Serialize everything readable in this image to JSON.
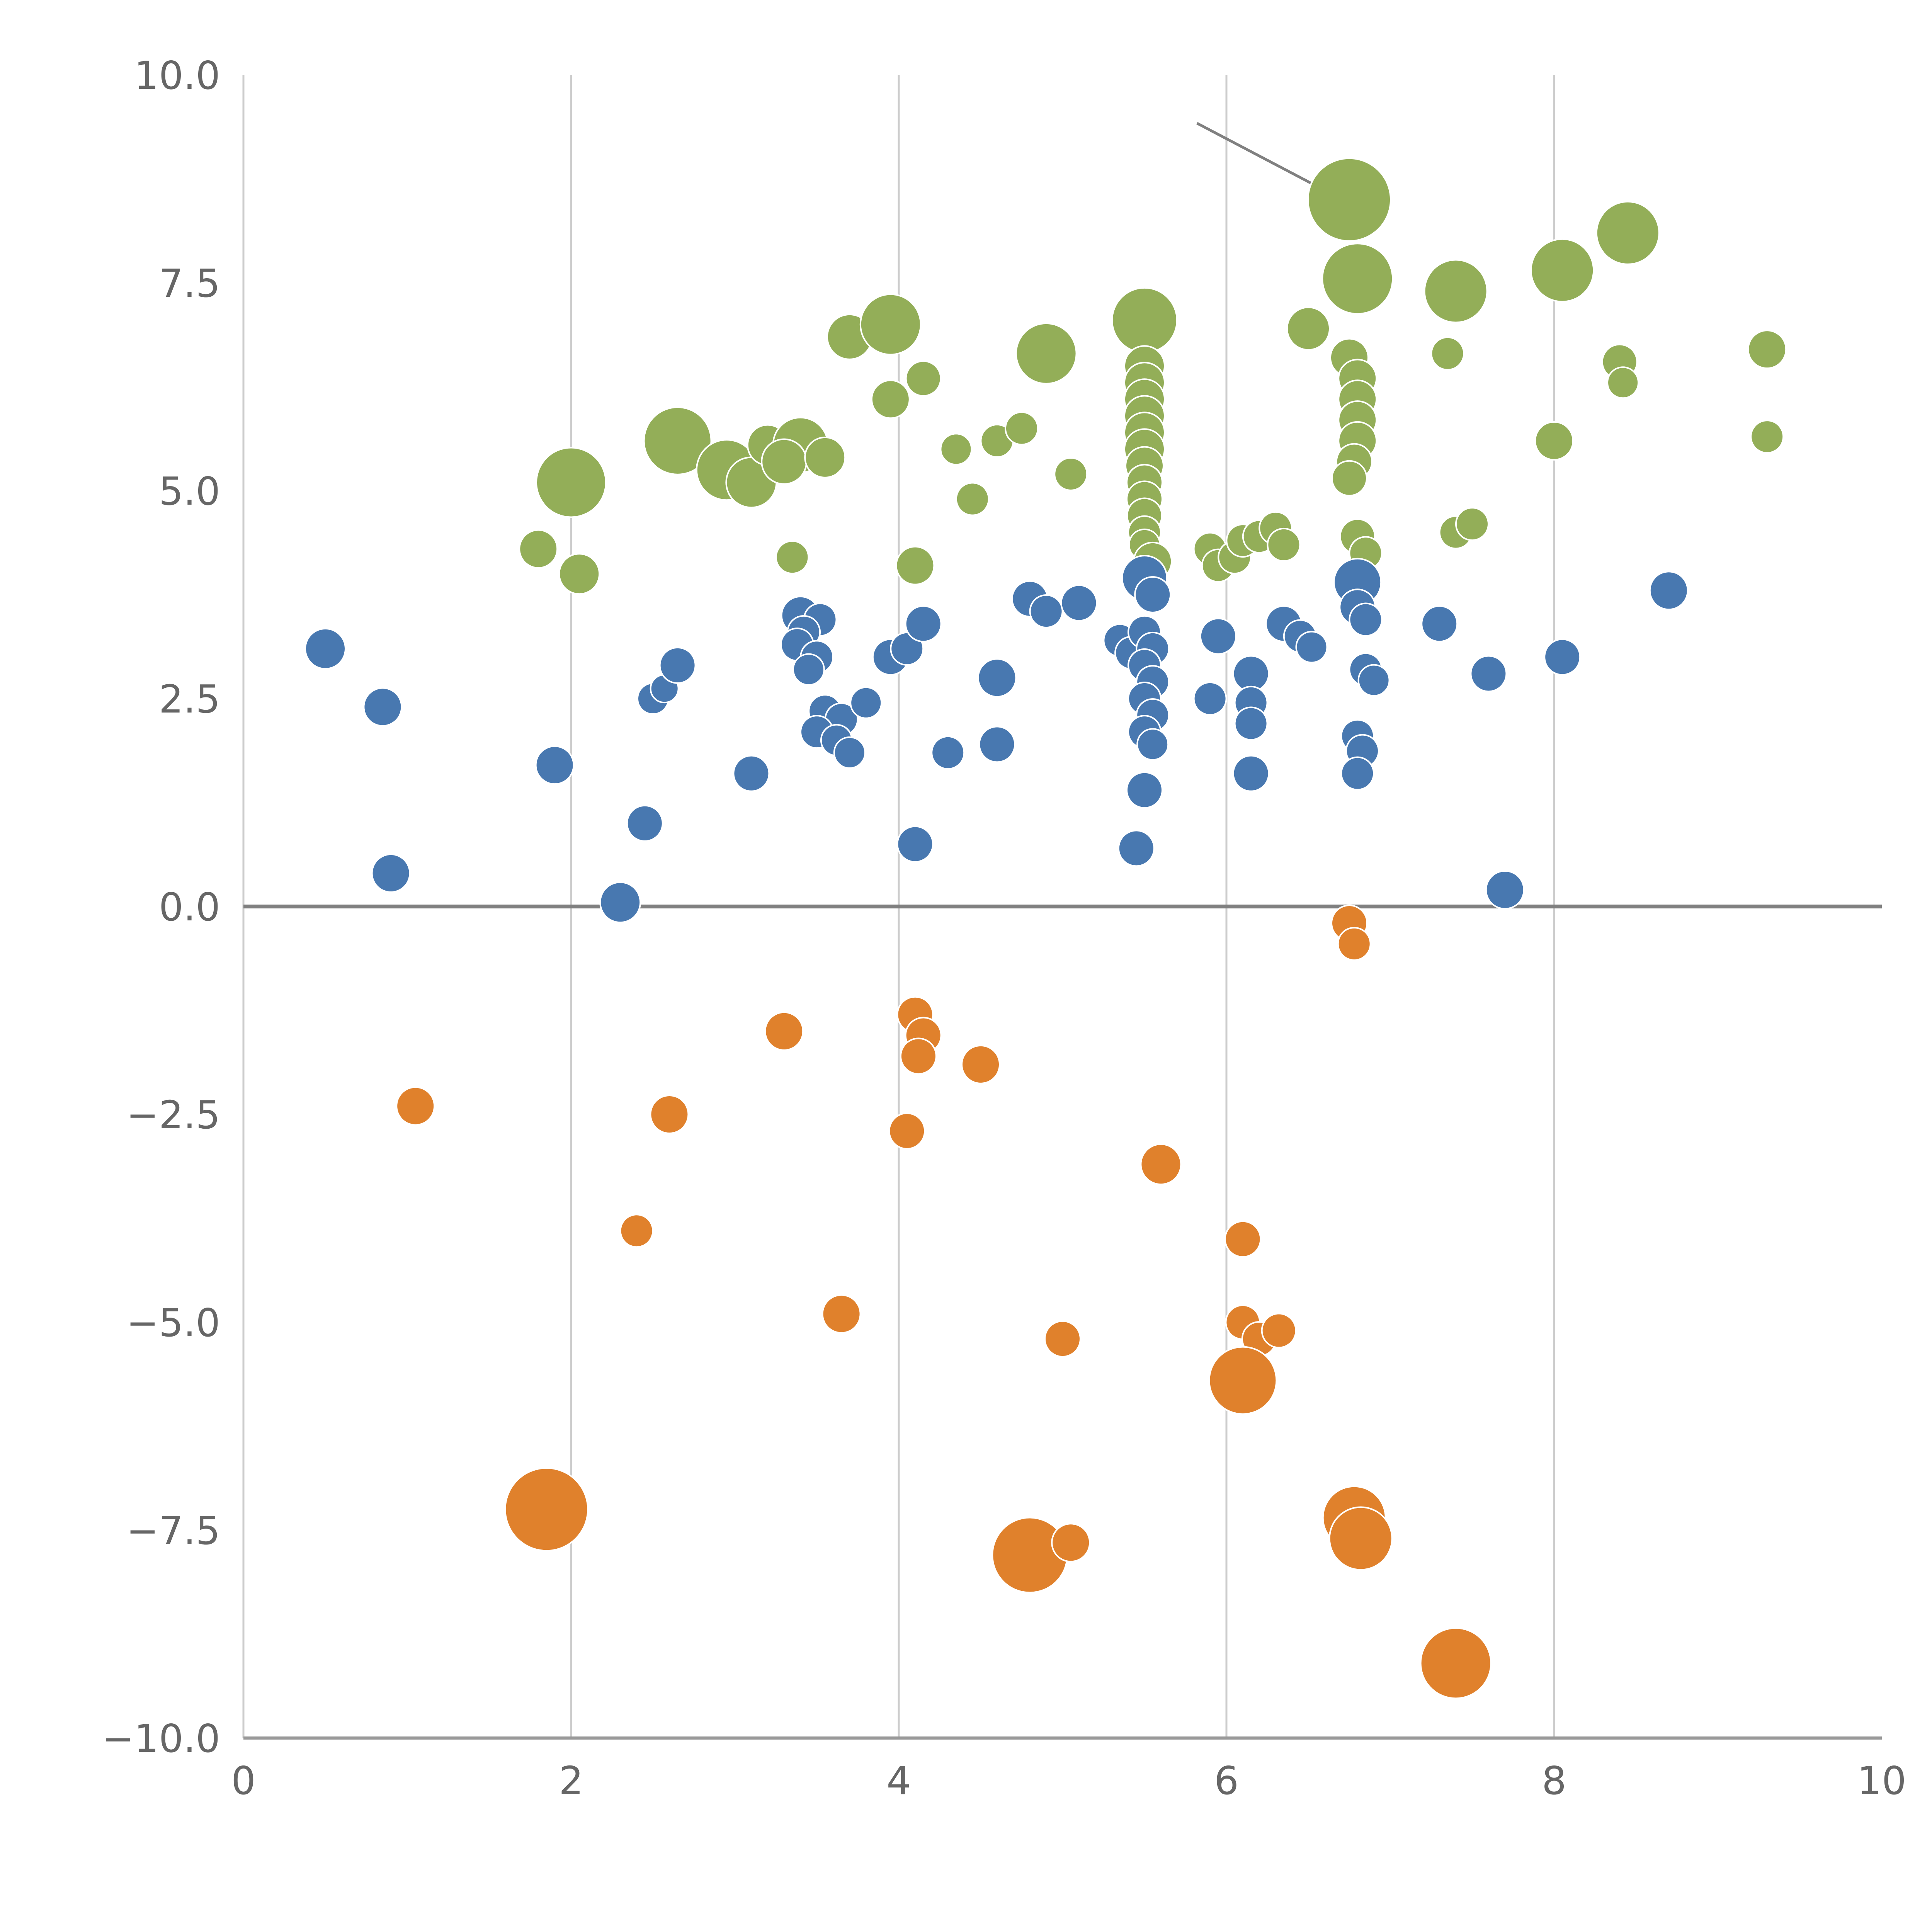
{
  "chart_data": {
    "type": "scatter",
    "title": "",
    "xlabel": "",
    "ylabel": "",
    "xlim": [
      0,
      10
    ],
    "ylim": [
      -10,
      10
    ],
    "x_tick_values": [
      0,
      2,
      4,
      6,
      8,
      10
    ],
    "x_tick_labels": [
      "0",
      "2",
      "4",
      "6",
      "8",
      "10"
    ],
    "y_tick_values": [
      10,
      7.5,
      5,
      2.5,
      0,
      -2.5,
      -5,
      -7.5,
      -10
    ],
    "y_tick_labels": [
      "10.0",
      "7.5",
      "5.0",
      "2.5",
      "0.0",
      "−2.5",
      "−5.0",
      "−7.5",
      "−10.0"
    ],
    "gridline_x_values": [
      2,
      4,
      6,
      8
    ],
    "grid_on": true,
    "legend": "none",
    "zero_line_y": 0,
    "annotation_line": {
      "x1": 5.82,
      "y1": 9.42,
      "x2": 6.66,
      "y2": 8.55
    },
    "colors": {
      "green": "#93ae58",
      "blue": "#4878b0",
      "orange": "#e0812c",
      "grid": "#cccccc",
      "zero_line": "#808080",
      "axis": "#999999",
      "tick_label": "#666666",
      "point_edge": "#ffffff",
      "background": "#ffffff"
    },
    "series": [
      {
        "name": "green",
        "color": "#93ae58",
        "points": [
          [
            2.0,
            5.1,
            90
          ],
          [
            1.8,
            4.3,
            49
          ],
          [
            2.05,
            4.0,
            52
          ],
          [
            2.65,
            5.6,
            87
          ],
          [
            2.95,
            5.25,
            78
          ],
          [
            3.1,
            5.1,
            65
          ],
          [
            3.2,
            5.55,
            52
          ],
          [
            3.4,
            5.55,
            71
          ],
          [
            3.3,
            5.35,
            58
          ],
          [
            3.55,
            5.4,
            52
          ],
          [
            3.35,
            4.2,
            42
          ],
          [
            3.7,
            6.85,
            58
          ],
          [
            3.95,
            7.0,
            78
          ],
          [
            3.95,
            6.1,
            49
          ],
          [
            4.15,
            6.35,
            45
          ],
          [
            4.1,
            4.1,
            49
          ],
          [
            4.35,
            5.5,
            40
          ],
          [
            4.45,
            4.9,
            42
          ],
          [
            4.6,
            5.6,
            42
          ],
          [
            4.75,
            5.75,
            42
          ],
          [
            4.9,
            6.65,
            78
          ],
          [
            5.05,
            5.2,
            42
          ],
          [
            5.5,
            7.05,
            84
          ],
          [
            5.5,
            6.5,
            52
          ],
          [
            5.5,
            6.3,
            52
          ],
          [
            5.5,
            6.1,
            52
          ],
          [
            5.5,
            5.9,
            52
          ],
          [
            5.5,
            5.7,
            52
          ],
          [
            5.5,
            5.5,
            52
          ],
          [
            5.5,
            5.3,
            49
          ],
          [
            5.5,
            5.1,
            46
          ],
          [
            5.5,
            4.9,
            46
          ],
          [
            5.5,
            4.7,
            45
          ],
          [
            5.5,
            4.5,
            42
          ],
          [
            5.5,
            4.35,
            40
          ],
          [
            5.55,
            4.15,
            49
          ],
          [
            5.9,
            4.3,
            42
          ],
          [
            5.95,
            4.1,
            42
          ],
          [
            6.05,
            4.2,
            42
          ],
          [
            6.1,
            4.4,
            42
          ],
          [
            6.2,
            4.45,
            42
          ],
          [
            6.3,
            4.55,
            42
          ],
          [
            6.35,
            4.35,
            42
          ],
          [
            6.5,
            6.95,
            55
          ],
          [
            6.75,
            8.5,
            107
          ],
          [
            6.8,
            7.55,
            91
          ],
          [
            6.75,
            6.6,
            49
          ],
          [
            6.8,
            6.35,
            49
          ],
          [
            6.8,
            6.1,
            49
          ],
          [
            6.8,
            5.85,
            49
          ],
          [
            6.8,
            5.6,
            49
          ],
          [
            6.78,
            5.35,
            46
          ],
          [
            6.75,
            5.15,
            45
          ],
          [
            6.8,
            4.45,
            45
          ],
          [
            6.85,
            4.25,
            42
          ],
          [
            7.4,
            7.4,
            81
          ],
          [
            7.35,
            6.65,
            42
          ],
          [
            7.4,
            4.5,
            42
          ],
          [
            7.5,
            4.6,
            42
          ],
          [
            8.05,
            7.65,
            81
          ],
          [
            8.0,
            5.6,
            49
          ],
          [
            8.45,
            8.1,
            81
          ],
          [
            8.4,
            6.55,
            45
          ],
          [
            8.42,
            6.3,
            40
          ],
          [
            9.3,
            6.7,
            49
          ],
          [
            9.3,
            5.65,
            42
          ]
        ]
      },
      {
        "name": "blue",
        "color": "#4878b0",
        "points": [
          [
            0.5,
            3.1,
            52
          ],
          [
            0.85,
            2.4,
            49
          ],
          [
            0.9,
            0.4,
            49
          ],
          [
            1.9,
            1.7,
            49
          ],
          [
            2.3,
            0.05,
            52
          ],
          [
            2.5,
            2.5,
            40
          ],
          [
            2.57,
            2.62,
            36
          ],
          [
            2.65,
            2.9,
            46
          ],
          [
            2.45,
            1.0,
            46
          ],
          [
            3.1,
            1.6,
            46
          ],
          [
            3.4,
            3.5,
            49
          ],
          [
            3.52,
            3.45,
            42
          ],
          [
            3.42,
            3.3,
            42
          ],
          [
            3.38,
            3.15,
            42
          ],
          [
            3.5,
            3.0,
            42
          ],
          [
            3.45,
            2.85,
            40
          ],
          [
            3.55,
            2.35,
            42
          ],
          [
            3.65,
            2.25,
            42
          ],
          [
            3.5,
            2.1,
            42
          ],
          [
            3.62,
            2.0,
            40
          ],
          [
            3.7,
            1.85,
            40
          ],
          [
            3.8,
            2.45,
            40
          ],
          [
            3.95,
            3.0,
            46
          ],
          [
            4.05,
            3.1,
            42
          ],
          [
            4.15,
            3.4,
            46
          ],
          [
            4.1,
            0.75,
            46
          ],
          [
            4.3,
            1.85,
            42
          ],
          [
            4.6,
            2.75,
            49
          ],
          [
            4.6,
            1.95,
            46
          ],
          [
            4.8,
            3.7,
            46
          ],
          [
            4.9,
            3.55,
            42
          ],
          [
            5.1,
            3.65,
            46
          ],
          [
            5.35,
            3.2,
            42
          ],
          [
            5.42,
            3.05,
            42
          ],
          [
            5.5,
            3.95,
            58
          ],
          [
            5.55,
            3.75,
            46
          ],
          [
            5.5,
            3.3,
            42
          ],
          [
            5.55,
            3.1,
            42
          ],
          [
            5.5,
            2.9,
            42
          ],
          [
            5.55,
            2.7,
            42
          ],
          [
            5.5,
            2.5,
            42
          ],
          [
            5.55,
            2.3,
            42
          ],
          [
            5.5,
            2.1,
            42
          ],
          [
            5.55,
            1.95,
            40
          ],
          [
            5.5,
            1.4,
            46
          ],
          [
            5.45,
            0.7,
            46
          ],
          [
            5.9,
            2.5,
            42
          ],
          [
            5.95,
            3.25,
            46
          ],
          [
            6.15,
            2.8,
            46
          ],
          [
            6.15,
            2.45,
            42
          ],
          [
            6.15,
            2.2,
            42
          ],
          [
            6.35,
            3.4,
            46
          ],
          [
            6.45,
            3.25,
            42
          ],
          [
            6.52,
            3.12,
            40
          ],
          [
            6.15,
            1.6,
            46
          ],
          [
            6.8,
            3.9,
            61
          ],
          [
            6.8,
            3.6,
            46
          ],
          [
            6.85,
            3.45,
            42
          ],
          [
            6.85,
            2.85,
            42
          ],
          [
            6.9,
            2.72,
            40
          ],
          [
            6.8,
            2.05,
            42
          ],
          [
            6.83,
            1.87,
            42
          ],
          [
            6.8,
            1.6,
            42
          ],
          [
            7.3,
            3.4,
            46
          ],
          [
            7.6,
            2.8,
            46
          ],
          [
            7.7,
            0.2,
            49
          ],
          [
            8.05,
            3.0,
            46
          ],
          [
            8.7,
            3.8,
            49
          ]
        ]
      },
      {
        "name": "orange",
        "color": "#e0812c",
        "points": [
          [
            1.05,
            -2.4,
            49
          ],
          [
            1.85,
            -7.25,
            107
          ],
          [
            2.4,
            -3.9,
            42
          ],
          [
            2.6,
            -2.5,
            49
          ],
          [
            3.3,
            -1.5,
            49
          ],
          [
            3.65,
            -4.9,
            49
          ],
          [
            4.1,
            -1.3,
            46
          ],
          [
            4.15,
            -1.55,
            46
          ],
          [
            4.12,
            -1.8,
            46
          ],
          [
            4.05,
            -2.7,
            46
          ],
          [
            4.5,
            -1.9,
            49
          ],
          [
            4.8,
            -7.8,
            97
          ],
          [
            5.05,
            -7.65,
            49
          ],
          [
            5.0,
            -5.2,
            46
          ],
          [
            5.6,
            -3.1,
            52
          ],
          [
            6.1,
            -4.0,
            46
          ],
          [
            6.1,
            -5.0,
            44
          ],
          [
            6.2,
            -5.2,
            44
          ],
          [
            6.32,
            -5.1,
            44
          ],
          [
            6.1,
            -5.7,
            87
          ],
          [
            6.75,
            -0.2,
            46
          ],
          [
            6.78,
            -0.45,
            42
          ],
          [
            6.78,
            -7.35,
            81
          ],
          [
            6.82,
            -7.6,
            81
          ],
          [
            7.4,
            -9.1,
            91
          ]
        ]
      }
    ]
  }
}
